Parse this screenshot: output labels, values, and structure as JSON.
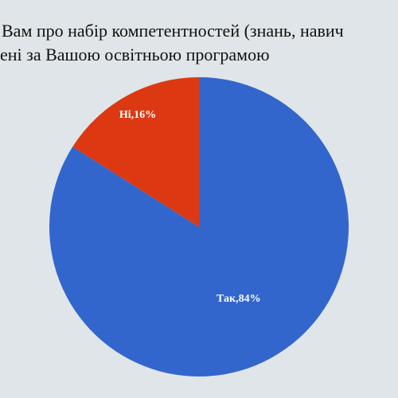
{
  "chart_data": {
    "type": "pie",
    "title": [
      "Вам про набір компетентностей (знань, навич",
      "ені за Вашою освітньою програмою"
    ],
    "categories": [
      "Так",
      "Ні"
    ],
    "values": [
      84,
      16
    ],
    "value_labels": [
      "Так,84%",
      "Ні,16%"
    ],
    "colors": [
      "#3366cc",
      "#dc3912"
    ]
  }
}
